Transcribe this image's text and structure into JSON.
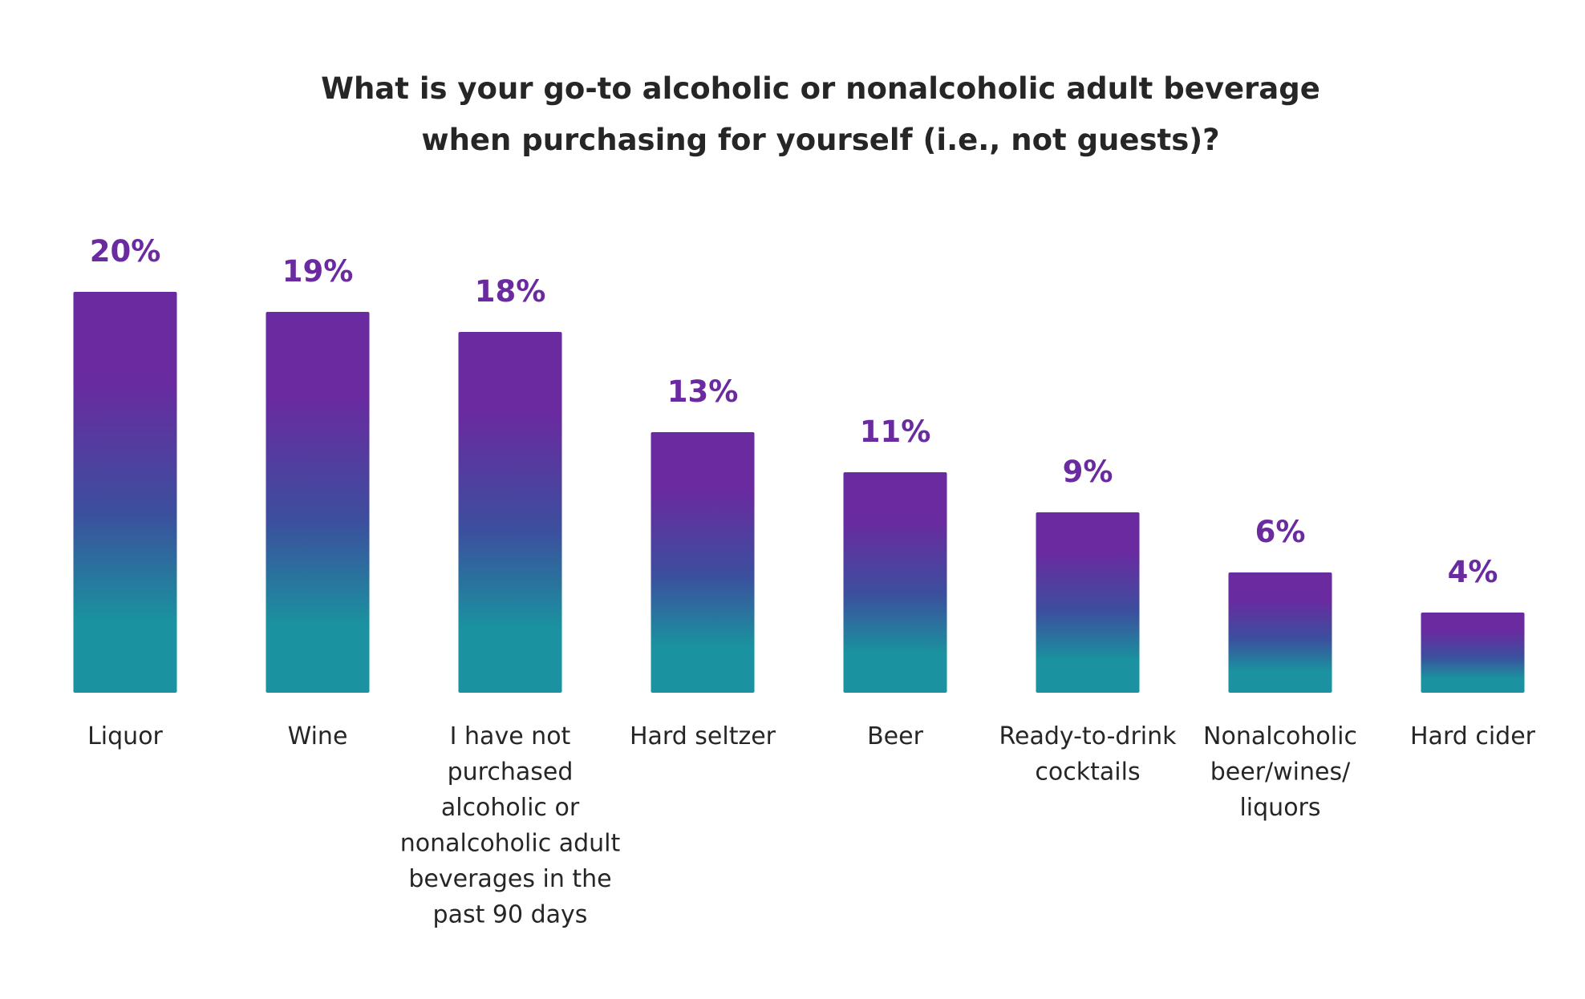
{
  "chart_data": {
    "type": "bar",
    "title": [
      "What is your go-to alcoholic or nonalcoholic adult beverage",
      "when purchasing for yourself (i.e., not guests)?"
    ],
    "categories": [
      [
        "Liquor"
      ],
      [
        "Wine"
      ],
      [
        "I have not",
        "purchased",
        "alcoholic or",
        "nonalcoholic adult",
        "beverages in the",
        "past 90 days"
      ],
      [
        "Hard seltzer"
      ],
      [
        "Beer"
      ],
      [
        "Ready-to-drink",
        "cocktails"
      ],
      [
        "Nonalcoholic",
        "beer/wines/",
        "liquors"
      ],
      [
        "Hard cider"
      ]
    ],
    "values": [
      20,
      19,
      18,
      13,
      11,
      9,
      6,
      4
    ],
    "value_labels": [
      "20%",
      "19%",
      "18%",
      "13%",
      "11%",
      "9%",
      "6%",
      "4%"
    ],
    "ylim": [
      0,
      20
    ],
    "grid": false,
    "legend": "none",
    "colors": {
      "bar_top": "#6a2aa0",
      "bar_mid": "#3c4f9e",
      "bar_bottom": "#1a929f",
      "value_label": "#6a2aa0",
      "text": "#262626"
    }
  }
}
